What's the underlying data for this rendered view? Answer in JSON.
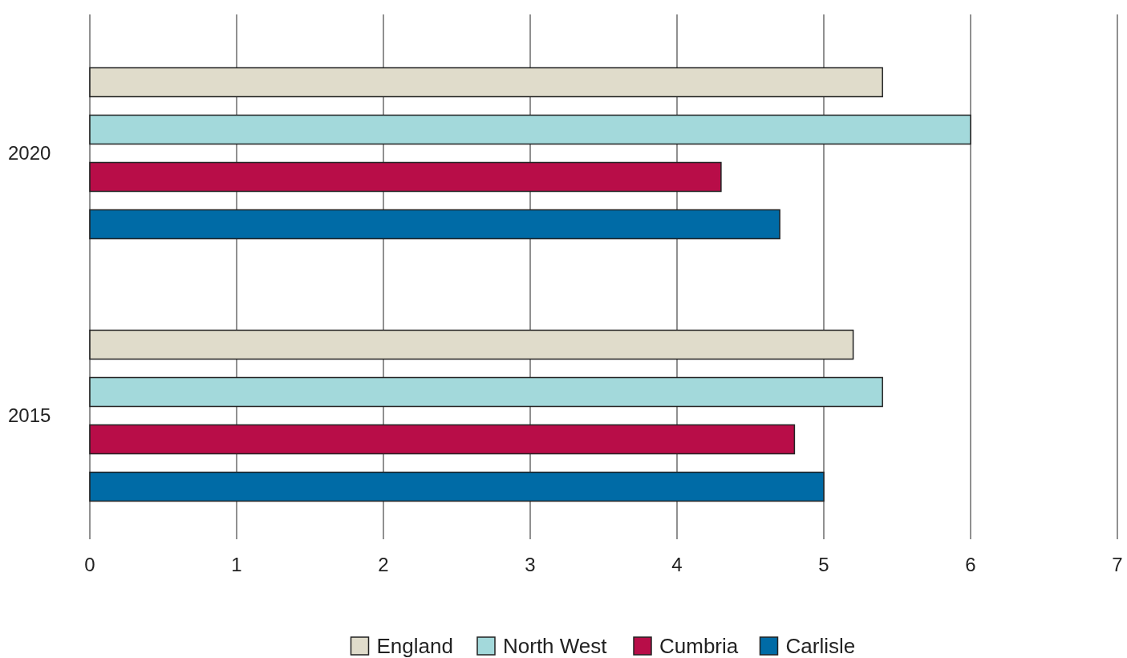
{
  "chart_data": {
    "type": "bar",
    "orientation": "horizontal",
    "categories": [
      "2020",
      "2015"
    ],
    "series": [
      {
        "name": "England",
        "color": "#e0dccb",
        "values": [
          5.4,
          5.2
        ]
      },
      {
        "name": "North West",
        "color": "#a3d9db",
        "values": [
          6.0,
          5.4
        ]
      },
      {
        "name": "Cumbria",
        "color": "#b80d48",
        "values": [
          4.3,
          4.8
        ]
      },
      {
        "name": "Carlisle",
        "color": "#006ba6",
        "values": [
          4.7,
          5.0
        ]
      }
    ],
    "xlim": [
      0,
      7
    ],
    "xticks": [
      0,
      1,
      2,
      3,
      4,
      5,
      6,
      7
    ],
    "grid": "x",
    "legend": "bottom"
  }
}
